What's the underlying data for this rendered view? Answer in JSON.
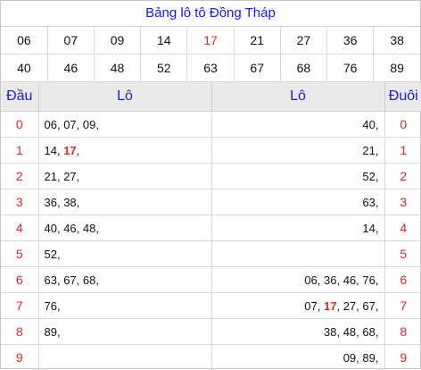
{
  "title": "Bảng lô tô Đồng Tháp",
  "numbers_row1": [
    "06",
    "07",
    "09",
    "14",
    "17",
    "21",
    "27",
    "36",
    "38"
  ],
  "numbers_row2": [
    "40",
    "46",
    "48",
    "52",
    "63",
    "67",
    "68",
    "76",
    "89"
  ],
  "highlight_number": "17",
  "headers": {
    "dau": "Đầu",
    "lo_left": "Lô",
    "lo_right": "Lô",
    "duoi": "Đuôi"
  },
  "rows": [
    {
      "dau": "0",
      "left": "06, 07, 09,",
      "right": "40,",
      "duoi": "0"
    },
    {
      "dau": "1",
      "left": "14, 17,",
      "right": "21,",
      "duoi": "1"
    },
    {
      "dau": "2",
      "left": "21, 27,",
      "right": "52,",
      "duoi": "2"
    },
    {
      "dau": "3",
      "left": "36, 38,",
      "right": "63,",
      "duoi": "3"
    },
    {
      "dau": "4",
      "left": "40, 46, 48,",
      "right": "14,",
      "duoi": "4"
    },
    {
      "dau": "5",
      "left": "52,",
      "right": "",
      "duoi": "5"
    },
    {
      "dau": "6",
      "left": "63, 67, 68,",
      "right": "06, 36, 46, 76,",
      "duoi": "6"
    },
    {
      "dau": "7",
      "left": "76,",
      "right": "07, 17, 27, 67,",
      "duoi": "7"
    },
    {
      "dau": "8",
      "left": "89,",
      "right": "38, 48, 68,",
      "duoi": "8"
    },
    {
      "dau": "9",
      "left": "",
      "right": "09, 89,",
      "duoi": "9"
    }
  ],
  "colors": {
    "title_blue": "#1a1ad8",
    "index_red": "#d42a2a",
    "header_bg": "#eaeaea"
  }
}
